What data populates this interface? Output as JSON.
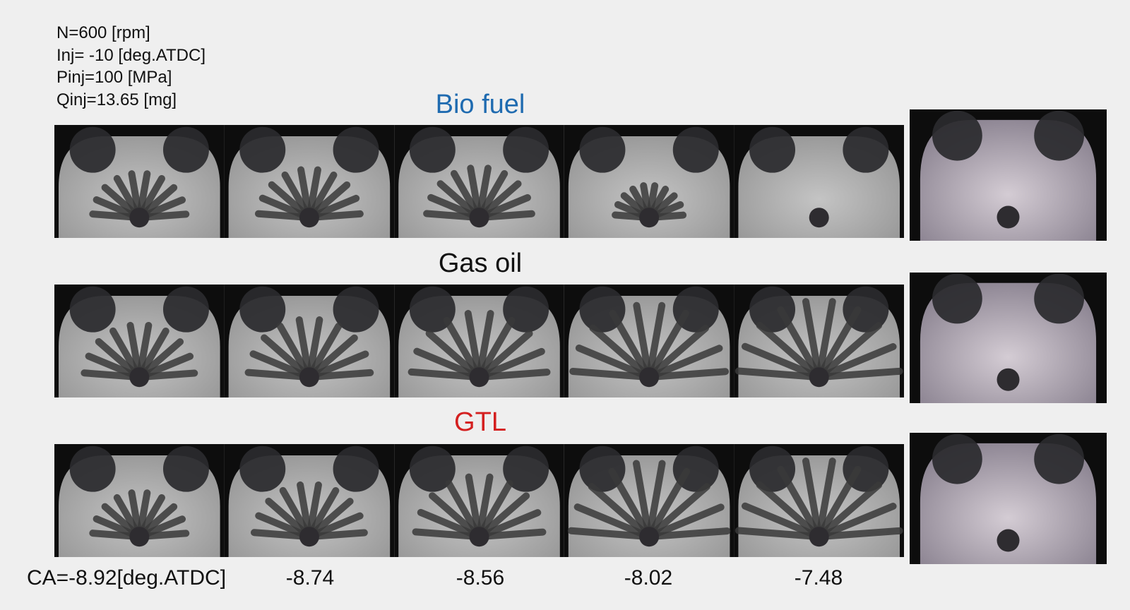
{
  "conditions": [
    "N=600 [rpm]",
    "Inj= -10 [deg.ATDC]",
    "Pinj=100 [MPa]",
    "Qinj=13.65 [mg]"
  ],
  "rows": [
    {
      "label": "Bio fuel"
    },
    {
      "label": "Gas oil"
    },
    {
      "label": "GTL"
    }
  ],
  "crank_angles": [
    "CA=-8.92[deg.ATDC]",
    "-8.74",
    "-8.56",
    "-8.02",
    "-7.48"
  ]
}
